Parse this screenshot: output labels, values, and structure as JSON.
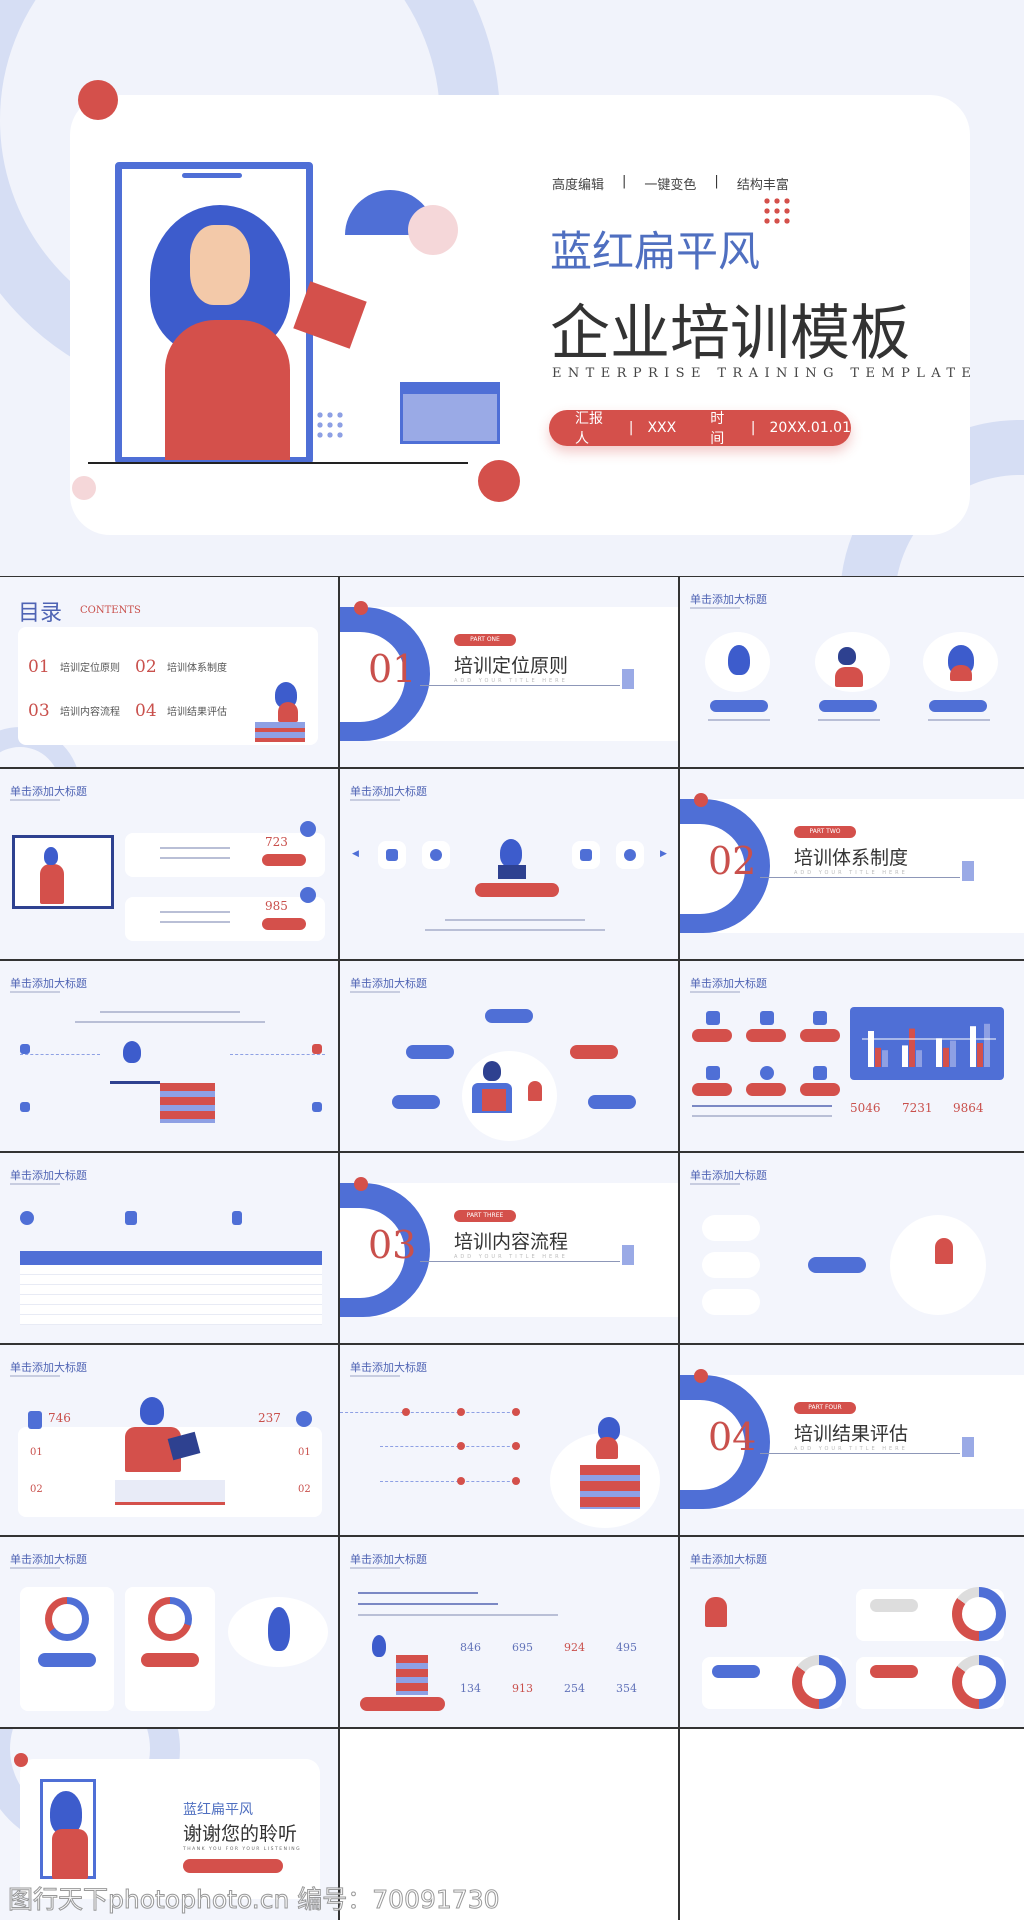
{
  "colors": {
    "blue": "#4f6fd6",
    "red": "#d4504b",
    "background": "#f3f5fc",
    "ring": "#d6def4"
  },
  "hero": {
    "tags": [
      "高度编辑",
      "一键变色",
      "结构丰富"
    ],
    "subtitle": "蓝红扁平风",
    "title": "企业培训模板",
    "title_en": "ENTERPRISE TRAINING TEMPLATE",
    "reporter_label": "汇报人",
    "reporter": "XXX",
    "time_label": "时间",
    "date": "20XX.01.01"
  },
  "toc": {
    "title": "目录",
    "title_en": "CONTENTS",
    "items": [
      {
        "num": "01",
        "label": "培训定位原则"
      },
      {
        "num": "02",
        "label": "培训体系制度"
      },
      {
        "num": "03",
        "label": "培训内容流程"
      },
      {
        "num": "04",
        "label": "培训结果评估"
      }
    ]
  },
  "sections": [
    {
      "num": "01",
      "part": "PART ONE",
      "title": "培训定位原则",
      "en": "ADD YOUR TITLE HERE"
    },
    {
      "num": "02",
      "part": "PART TWO",
      "title": "培训体系制度",
      "en": "ADD YOUR TITLE HERE"
    },
    {
      "num": "03",
      "part": "PART THREE",
      "title": "培训内容流程",
      "en": "ADD YOUR TITLE HERE"
    },
    {
      "num": "04",
      "part": "PART FOUR",
      "title": "培训结果评估",
      "en": "ADD YOUR TITLE HERE"
    }
  ],
  "slide_title": "单击添加大标题",
  "slide4": {
    "values": [
      "723",
      "985"
    ]
  },
  "slide9": {
    "values": [
      "5046",
      "7231",
      "9864"
    ],
    "bars": [
      [
        75,
        40,
        35
      ],
      [
        45,
        80,
        35
      ],
      [
        60,
        40,
        55
      ],
      [
        85,
        50,
        90
      ]
    ]
  },
  "slide13": {
    "values": [
      "746",
      "237"
    ],
    "items": [
      "01",
      "02",
      "01",
      "02"
    ]
  },
  "slide17": {
    "values": [
      "846",
      "695",
      "924",
      "495",
      "134",
      "913",
      "254",
      "354"
    ]
  },
  "thanks": {
    "subtitle": "蓝红扁平风",
    "title": "谢谢您的聆听",
    "en": "THANK YOU FOR YOUR LISTENING"
  },
  "watermark": "图行天下photophoto.cn 编号：70091730"
}
